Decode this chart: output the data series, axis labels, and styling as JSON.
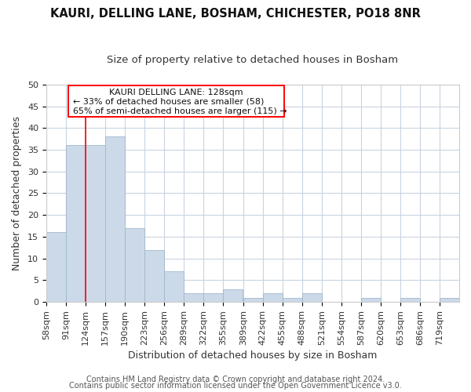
{
  "title": "KAURI, DELLING LANE, BOSHAM, CHICHESTER, PO18 8NR",
  "subtitle": "Size of property relative to detached houses in Bosham",
  "xlabel": "Distribution of detached houses by size in Bosham",
  "ylabel": "Number of detached properties",
  "footer_line1": "Contains HM Land Registry data © Crown copyright and database right 2024.",
  "footer_line2": "Contains public sector information licensed under the Open Government Licence v3.0.",
  "annotation_line1": "KAURI DELLING LANE: 128sqm",
  "annotation_line2": "← 33% of detached houses are smaller (58)",
  "annotation_line3": "65% of semi-detached houses are larger (115) →",
  "bar_color": "#ccd9e8",
  "bar_edge_color": "#a0b8cc",
  "red_line_x": 124,
  "categories": [
    "58sqm",
    "91sqm",
    "124sqm",
    "157sqm",
    "190sqm",
    "223sqm",
    "256sqm",
    "289sqm",
    "322sqm",
    "355sqm",
    "389sqm",
    "422sqm",
    "455sqm",
    "488sqm",
    "521sqm",
    "554sqm",
    "587sqm",
    "620sqm",
    "653sqm",
    "686sqm",
    "719sqm"
  ],
  "values": [
    16,
    36,
    36,
    38,
    17,
    12,
    7,
    2,
    2,
    3,
    1,
    2,
    1,
    2,
    0,
    0,
    1,
    0,
    1,
    0,
    1
  ],
  "bin_starts": [
    58,
    91,
    124,
    157,
    190,
    223,
    256,
    289,
    322,
    355,
    389,
    422,
    455,
    488,
    521,
    554,
    587,
    620,
    653,
    686,
    719
  ],
  "bin_width": 33,
  "ylim": [
    0,
    50
  ],
  "yticks": [
    0,
    5,
    10,
    15,
    20,
    25,
    30,
    35,
    40,
    45,
    50
  ],
  "background_color": "#ffffff",
  "plot_background": "#ffffff",
  "grid_color": "#c8d4e0",
  "title_fontsize": 10.5,
  "subtitle_fontsize": 9.5,
  "axis_label_fontsize": 9,
  "tick_fontsize": 8,
  "footer_fontsize": 7
}
